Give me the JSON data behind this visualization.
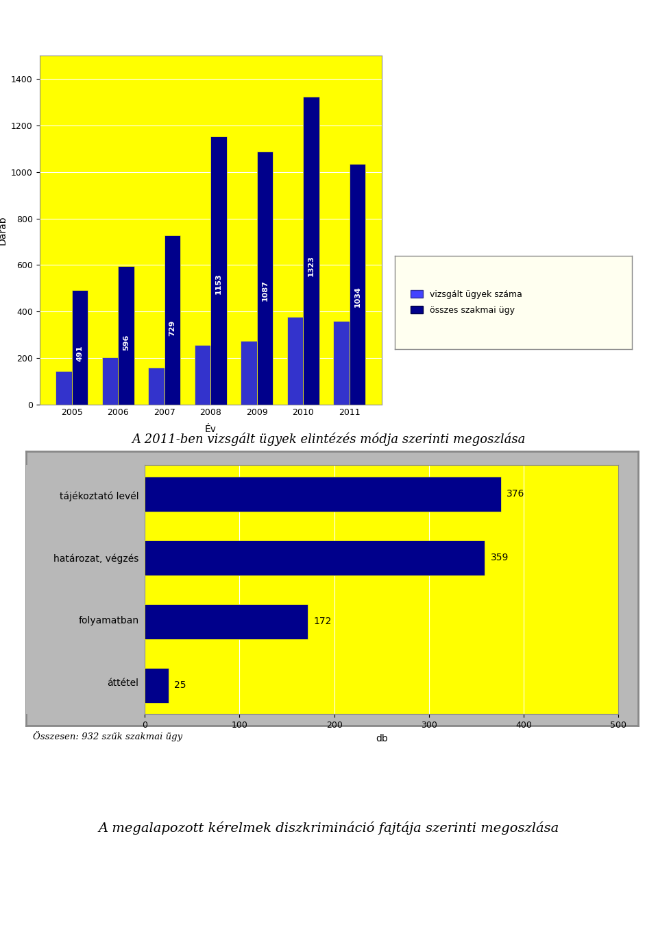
{
  "bar_chart": {
    "years": [
      "2005",
      "2006",
      "2007",
      "2008",
      "2009",
      "2010",
      "2011"
    ],
    "vizsgalt": [
      144,
      202,
      159,
      256,
      273,
      377,
      359
    ],
    "osszes": [
      491,
      596,
      729,
      1153,
      1087,
      1323,
      1034
    ],
    "ylabel": "Darab",
    "xlabel": "Év",
    "ylim": [
      0,
      1500
    ],
    "yticks": [
      0,
      200,
      400,
      600,
      800,
      1000,
      1200,
      1400
    ],
    "bar_color_vizsgalt": "#3333cc",
    "bar_color_osszes": "#00008b",
    "bg_color": "#ffff00",
    "legend_vizsgalt": "vizsgált ügyek száma",
    "legend_osszes": "összes szakmai ügy",
    "legend_color_vizsgalt": "#4444ff",
    "legend_color_osszes": "#00008b"
  },
  "bar_chart_title": "A 2011-ben vizsgált ügyek elintézés módja szerinti megoszlása",
  "horiz_chart": {
    "categories": [
      "tájékoztató levél",
      "határozat, végzés",
      "folyamatban",
      "áttétel"
    ],
    "values": [
      376,
      359,
      172,
      25
    ],
    "bar_color": "#00008b",
    "bg_color": "#ffff00",
    "plot_bg": "#b8b8b8",
    "xlabel": "db",
    "xlim": [
      0,
      500
    ],
    "xticks": [
      0,
      100,
      200,
      300,
      400,
      500
    ]
  },
  "footer_text": "Összesen: 932 szűk szakmai ügy",
  "bottom_title": "A megalapozott kérelmek diszkrimináció fajtája szerinti megoszlása",
  "fig_bg": "#ffffff"
}
